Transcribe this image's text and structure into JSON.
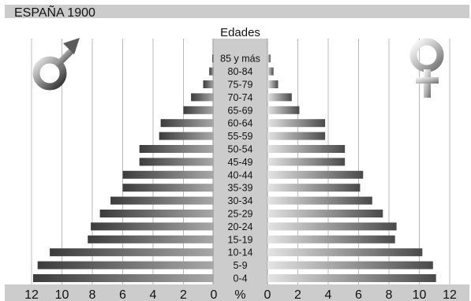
{
  "chart_data": {
    "type": "bar",
    "subtype": "population-pyramid",
    "title": "ESPAÑA 1900",
    "category_axis_label": "Edades",
    "unit_label": "%",
    "categories": [
      "0-4",
      "5-9",
      "10-14",
      "15-19",
      "20-24",
      "25-29",
      "30-34",
      "35-39",
      "40-44",
      "45-49",
      "50-54",
      "55-59",
      "60-64",
      "65-69",
      "70-74",
      "75-79",
      "80-84",
      "85 y más"
    ],
    "series": [
      {
        "side": "left",
        "symbol": "male-symbol",
        "values": [
          11.9,
          11.6,
          10.8,
          8.3,
          8.1,
          7.5,
          6.8,
          6.0,
          6.0,
          4.9,
          4.9,
          3.6,
          3.5,
          2.0,
          1.5,
          0.7,
          0.3,
          0.1
        ]
      },
      {
        "side": "right",
        "symbol": "female-symbol",
        "values": [
          11.1,
          10.9,
          10.2,
          8.4,
          8.5,
          7.6,
          6.9,
          6.1,
          6.3,
          5.1,
          5.1,
          3.8,
          3.8,
          2.1,
          1.6,
          0.7,
          0.4,
          0.2
        ]
      }
    ],
    "xlim": [
      0,
      12
    ],
    "x_ticks_left": [
      "12",
      "10",
      "8",
      "6",
      "4",
      "2",
      "0"
    ],
    "x_ticks_right": [
      "0",
      "2",
      "4",
      "6",
      "8",
      "10",
      "12"
    ],
    "grid": true
  },
  "colors": {
    "background": "#ffffff",
    "band": "#cccccc",
    "grid": "#bbbbbb",
    "center_column": "#cccccc",
    "male_bar_dark": "#3c3c3c",
    "male_bar_light": "#a8a8a8",
    "female_bar_dark": "#4a4a4a",
    "female_bar_light": "#e4e4e4"
  }
}
